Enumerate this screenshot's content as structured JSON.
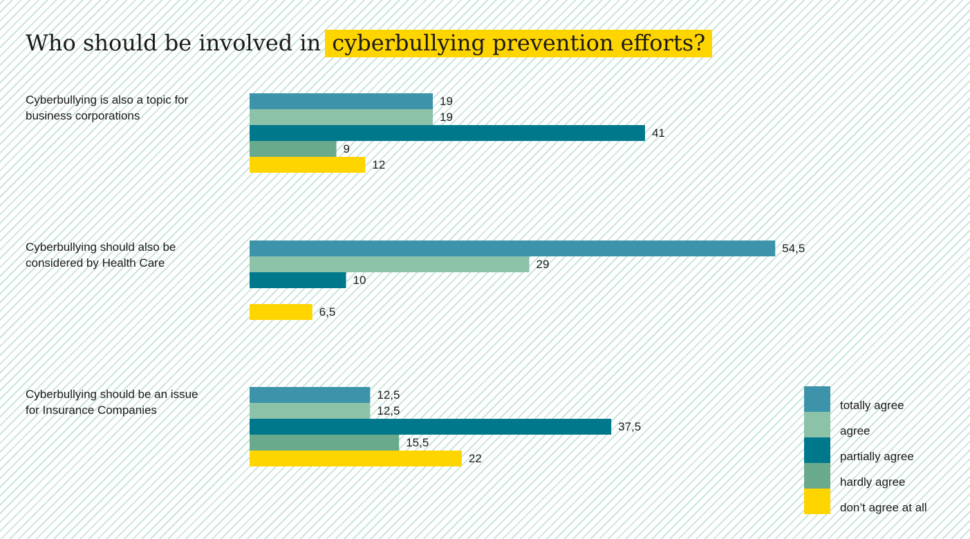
{
  "title": {
    "prefix": "Who should be involved in",
    "highlight": "cyberbullying prevention efforts?"
  },
  "colors": {
    "totally_agree": "#3d93aa",
    "agree": "#8cc2a8",
    "partially_agree": "#00788b",
    "hardly_agree": "#6aaa8c",
    "dont_agree": "#ffd500",
    "highlight": "#ffd500"
  },
  "legend": [
    {
      "label": "totally agree",
      "color": "#3d93aa"
    },
    {
      "label": "agree",
      "color": "#8cc2a8"
    },
    {
      "label": "partially agree",
      "color": "#00788b"
    },
    {
      "label": "hardly agree",
      "color": "#6aaa8c"
    },
    {
      "label": "don’t agree at all",
      "color": "#ffd500"
    }
  ],
  "chart_data": {
    "type": "bar",
    "orientation": "horizontal",
    "categories": [
      "Cyberbullying is also a topic for business corporations",
      "Cyberbullying should also be considered by Health Care",
      "Cyberbullying should be an issue for Insurance Companies"
    ],
    "series": [
      {
        "name": "totally agree",
        "color": "#3d93aa",
        "values": [
          19,
          54.5,
          12.5
        ],
        "labels": [
          "19",
          "54,5",
          "12,5"
        ]
      },
      {
        "name": "agree",
        "color": "#8cc2a8",
        "values": [
          19,
          29,
          12.5
        ],
        "labels": [
          "19",
          "29",
          "12,5"
        ]
      },
      {
        "name": "partially agree",
        "color": "#00788b",
        "values": [
          41,
          10,
          37.5
        ],
        "labels": [
          "41",
          "10",
          "37,5"
        ]
      },
      {
        "name": "hardly agree",
        "color": "#6aaa8c",
        "values": [
          9,
          null,
          15.5
        ],
        "labels": [
          "9",
          "",
          "15,5"
        ]
      },
      {
        "name": "don’t agree at all",
        "color": "#ffd500",
        "values": [
          12,
          6.5,
          22
        ],
        "labels": [
          "12",
          "6,5",
          "22"
        ]
      }
    ],
    "legend_position": "bottom-right",
    "grid": false
  }
}
